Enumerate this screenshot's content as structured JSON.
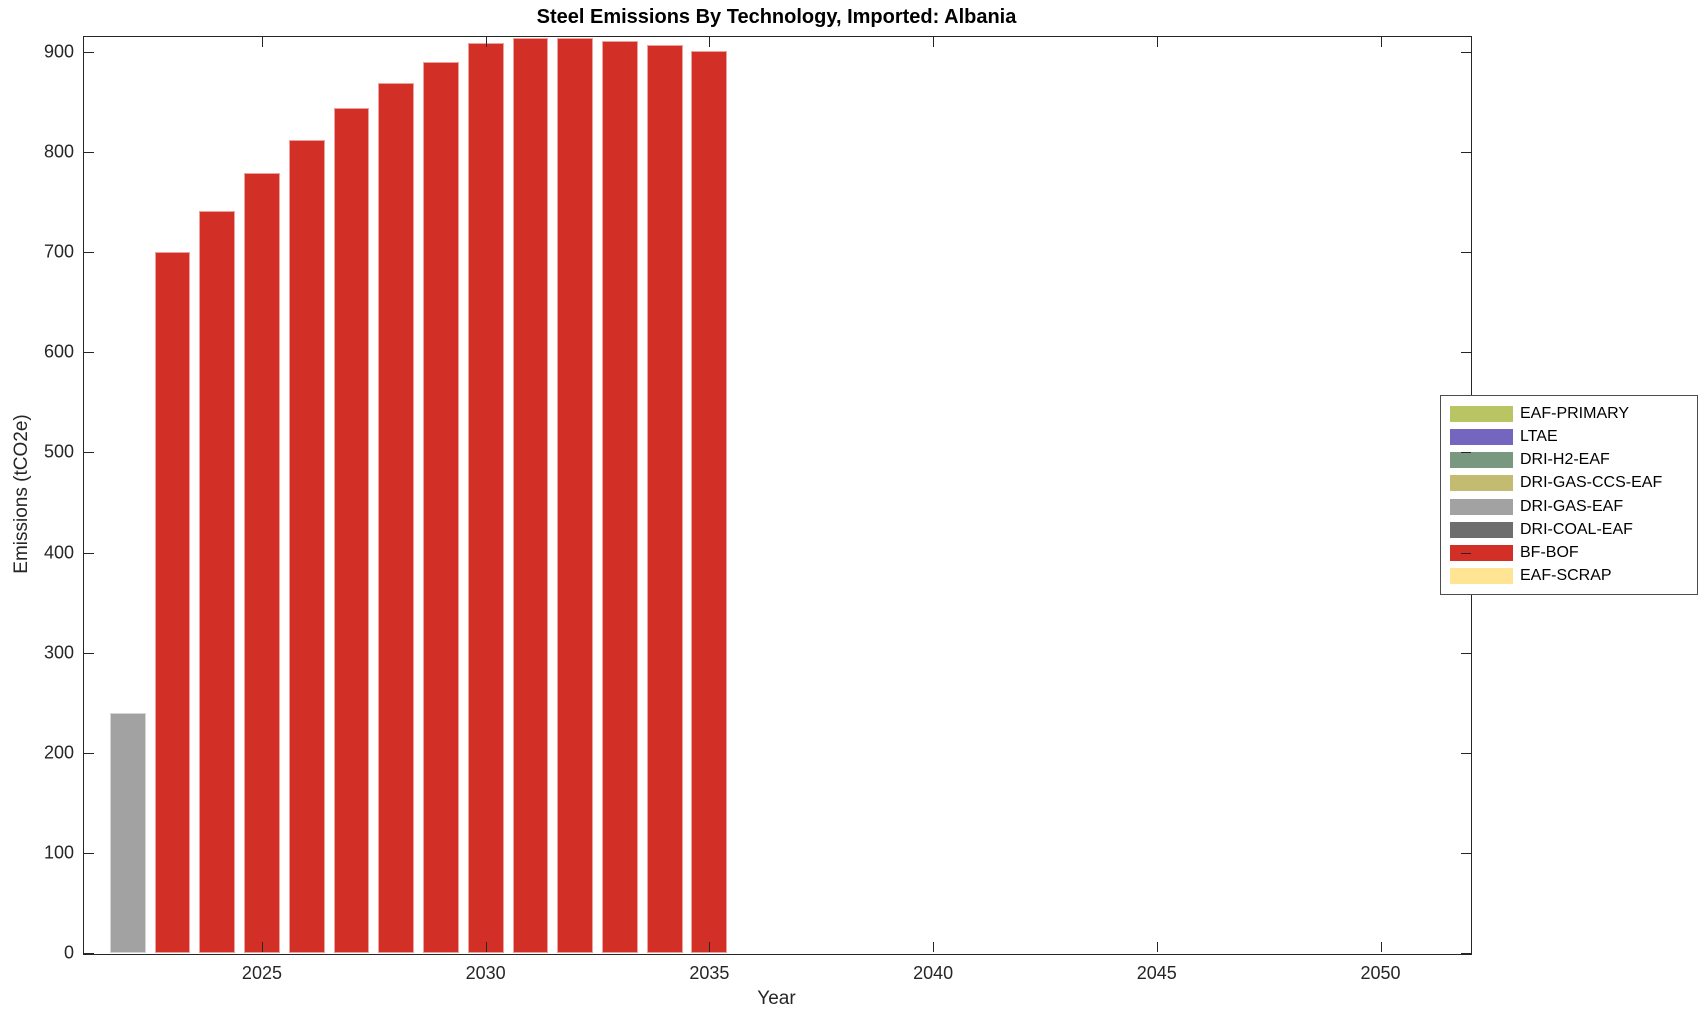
{
  "chart_data": {
    "type": "bar",
    "title": "Steel Emissions By Technology, Imported: Albania",
    "xlabel": "Year",
    "ylabel": "Emissions (tCO2e)",
    "xlim": [
      2021,
      2052
    ],
    "ylim": [
      0,
      916
    ],
    "x_ticks": [
      2025,
      2030,
      2035,
      2040,
      2045,
      2050
    ],
    "y_ticks": [
      0,
      100,
      200,
      300,
      400,
      500,
      600,
      700,
      800,
      900
    ],
    "grid": false,
    "legend_position": "outside-right",
    "bar_width_fraction": 0.8,
    "bars": [
      {
        "year": 2022,
        "value": 240,
        "tech": "DRI-GAS-EAF"
      },
      {
        "year": 2023,
        "value": 700,
        "tech": "BF-BOF"
      },
      {
        "year": 2024,
        "value": 741,
        "tech": "BF-BOF"
      },
      {
        "year": 2025,
        "value": 779,
        "tech": "BF-BOF"
      },
      {
        "year": 2026,
        "value": 812,
        "tech": "BF-BOF"
      },
      {
        "year": 2027,
        "value": 844,
        "tech": "BF-BOF"
      },
      {
        "year": 2028,
        "value": 869,
        "tech": "BF-BOF"
      },
      {
        "year": 2029,
        "value": 890,
        "tech": "BF-BOF"
      },
      {
        "year": 2030,
        "value": 909,
        "tech": "BF-BOF"
      },
      {
        "year": 2031,
        "value": 914,
        "tech": "BF-BOF"
      },
      {
        "year": 2032,
        "value": 914,
        "tech": "BF-BOF"
      },
      {
        "year": 2033,
        "value": 911,
        "tech": "BF-BOF"
      },
      {
        "year": 2034,
        "value": 907,
        "tech": "BF-BOF"
      },
      {
        "year": 2035,
        "value": 901,
        "tech": "BF-BOF"
      }
    ],
    "legend": [
      {
        "label": "EAF-PRIMARY",
        "color": "#B9C563"
      },
      {
        "label": "LTAE",
        "color": "#7466BE"
      },
      {
        "label": "DRI-H2-EAF",
        "color": "#78997F"
      },
      {
        "label": "DRI-GAS-CCS-EAF",
        "color": "#C3BB72"
      },
      {
        "label": "DRI-GAS-EAF",
        "color": "#A2A2A2"
      },
      {
        "label": "DRI-COAL-EAF",
        "color": "#6E6E6E"
      },
      {
        "label": "BF-BOF",
        "color": "#D23027"
      },
      {
        "label": "EAF-SCRAP",
        "color": "#FFE593"
      }
    ],
    "colors": {
      "axis": "#262626",
      "background": "#ffffff"
    }
  }
}
